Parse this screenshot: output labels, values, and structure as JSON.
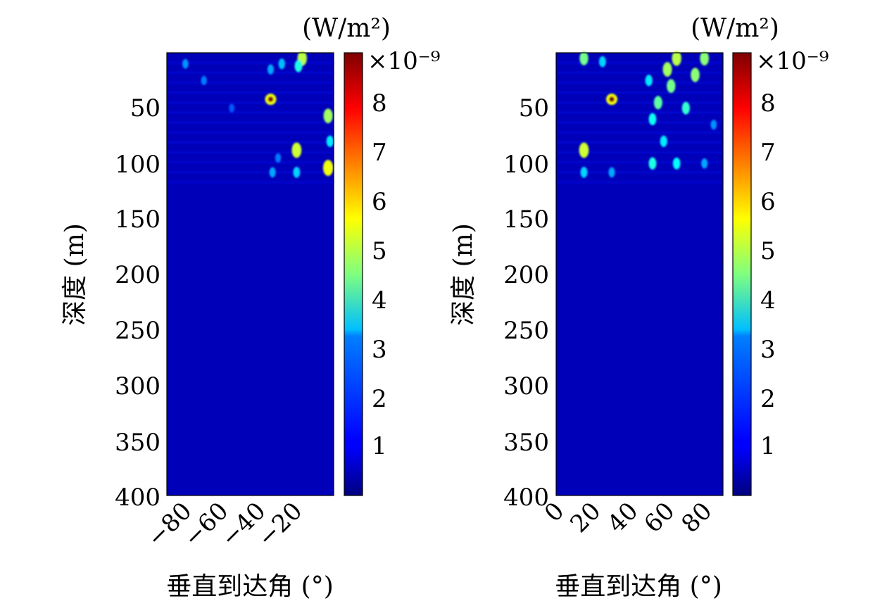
{
  "chart_data": [
    {
      "type": "heatmap",
      "title": "",
      "xlabel": "垂直到达角 (°)",
      "ylabel": "深度 (m)",
      "xlim": [
        -90,
        0
      ],
      "ylim": [
        0,
        400
      ],
      "y_reversed": true,
      "xticks": [
        "−80",
        "−60",
        "−40",
        "−20"
      ],
      "xtick_values": [
        -80,
        -60,
        -40,
        -20
      ],
      "yticks": [
        "50",
        "100",
        "150",
        "200",
        "250",
        "300",
        "350",
        "400"
      ],
      "ytick_values": [
        50,
        100,
        150,
        200,
        250,
        300,
        350,
        400
      ],
      "colorbar": {
        "label": "(W/m²)",
        "exponent": "×10⁻⁹",
        "ticks": [
          "1",
          "2",
          "3",
          "4",
          "5",
          "6",
          "7",
          "8"
        ],
        "tick_values": [
          1,
          2,
          3,
          4,
          5,
          6,
          7,
          8
        ],
        "range": [
          0,
          9
        ],
        "colormap": "jet"
      },
      "background_value": 0.5,
      "features": [
        {
          "angle": -34,
          "depth": 42,
          "value": 9.0
        },
        {
          "angle": -20,
          "depth": 88,
          "value": 5.2
        },
        {
          "angle": -3,
          "depth": 57,
          "value": 4.8
        },
        {
          "angle": -3,
          "depth": 104,
          "value": 5.5
        },
        {
          "angle": -2,
          "depth": 80,
          "value": 3.2
        },
        {
          "angle": -17,
          "depth": 5,
          "value": 5.0
        },
        {
          "angle": -19,
          "depth": 12,
          "value": 3.6
        },
        {
          "angle": -28,
          "depth": 10,
          "value": 2.8
        },
        {
          "angle": -34,
          "depth": 15,
          "value": 2.6
        },
        {
          "angle": -20,
          "depth": 108,
          "value": 3.0
        },
        {
          "angle": -33,
          "depth": 108,
          "value": 2.6
        },
        {
          "angle": -80,
          "depth": 10,
          "value": 2.4
        },
        {
          "angle": -70,
          "depth": 25,
          "value": 2.2
        },
        {
          "angle": -55,
          "depth": 50,
          "value": 1.9
        },
        {
          "angle": -30,
          "depth": 95,
          "value": 2.2
        }
      ]
    },
    {
      "type": "heatmap",
      "title": "",
      "xlabel": "垂直到达角 (°)",
      "ylabel": "深度 (m)",
      "xlim": [
        0,
        90
      ],
      "ylim": [
        0,
        400
      ],
      "y_reversed": true,
      "xticks": [
        "0",
        "20",
        "40",
        "60",
        "80"
      ],
      "xtick_values": [
        0,
        20,
        40,
        60,
        80
      ],
      "yticks": [
        "50",
        "100",
        "150",
        "200",
        "250",
        "300",
        "350",
        "400"
      ],
      "ytick_values": [
        50,
        100,
        150,
        200,
        250,
        300,
        350,
        400
      ],
      "colorbar": {
        "label": "(W/m²)",
        "exponent": "×10⁻⁹",
        "ticks": [
          "1",
          "2",
          "3",
          "4",
          "5",
          "6",
          "7",
          "8"
        ],
        "tick_values": [
          1,
          2,
          3,
          4,
          5,
          6,
          7,
          8
        ],
        "range": [
          0,
          9
        ],
        "colormap": "jet"
      },
      "background_value": 0.5,
      "features": [
        {
          "angle": 30,
          "depth": 42,
          "value": 9.0
        },
        {
          "angle": 15,
          "depth": 88,
          "value": 5.2
        },
        {
          "angle": 15,
          "depth": 108,
          "value": 3.0
        },
        {
          "angle": 30,
          "depth": 108,
          "value": 2.6
        },
        {
          "angle": 15,
          "depth": 5,
          "value": 4.4
        },
        {
          "angle": 25,
          "depth": 8,
          "value": 3.0
        },
        {
          "angle": 65,
          "depth": 5,
          "value": 5.0
        },
        {
          "angle": 80,
          "depth": 5,
          "value": 4.6
        },
        {
          "angle": 60,
          "depth": 15,
          "value": 4.8
        },
        {
          "angle": 75,
          "depth": 20,
          "value": 4.6
        },
        {
          "angle": 62,
          "depth": 30,
          "value": 4.4
        },
        {
          "angle": 55,
          "depth": 45,
          "value": 4.2
        },
        {
          "angle": 70,
          "depth": 50,
          "value": 3.8
        },
        {
          "angle": 52,
          "depth": 60,
          "value": 3.5
        },
        {
          "angle": 58,
          "depth": 80,
          "value": 3.2
        },
        {
          "angle": 52,
          "depth": 100,
          "value": 3.6
        },
        {
          "angle": 65,
          "depth": 100,
          "value": 3.4
        },
        {
          "angle": 80,
          "depth": 100,
          "value": 2.6
        },
        {
          "angle": 85,
          "depth": 65,
          "value": 2.4
        },
        {
          "angle": 50,
          "depth": 25,
          "value": 3.2
        }
      ]
    }
  ]
}
